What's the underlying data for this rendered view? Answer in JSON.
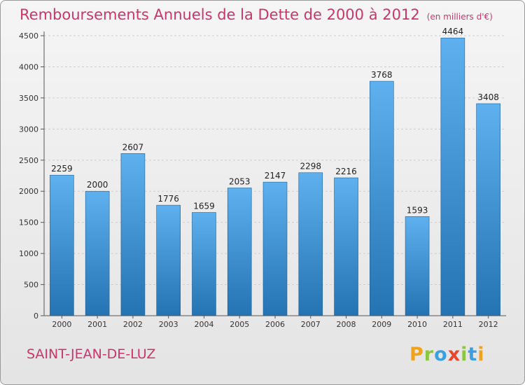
{
  "chart_data": {
    "type": "bar",
    "title": "Remboursements Annuels de la Dette de 2000 à 2012",
    "subtitle": "(en milliers d'€)",
    "categories": [
      "2000",
      "2001",
      "2002",
      "2003",
      "2004",
      "2005",
      "2006",
      "2007",
      "2008",
      "2009",
      "2010",
      "2011",
      "2012"
    ],
    "values": [
      2259,
      2000,
      2607,
      1776,
      1659,
      2053,
      2147,
      2298,
      2216,
      3768,
      1593,
      4464,
      3408
    ],
    "ylim": [
      0,
      4500
    ],
    "yticks": [
      0,
      500,
      1000,
      1500,
      2000,
      2500,
      3000,
      3500,
      4000,
      4500
    ],
    "grid": true,
    "bar_color": "#3c92d6"
  },
  "footer": {
    "city": "SAINT-JEAN-DE-LUZ"
  },
  "logo": {
    "letters": [
      {
        "char": "P",
        "color": "#f0a21e"
      },
      {
        "char": "r",
        "color": "#8cc63f"
      },
      {
        "char": "o",
        "color": "#3aa0e0"
      },
      {
        "char": "x",
        "color": "#e8452c"
      },
      {
        "char": "i",
        "color": "#8cc63f"
      },
      {
        "char": "t",
        "color": "#3aa0e0"
      },
      {
        "char": "i",
        "color": "#f0a21e"
      }
    ]
  }
}
